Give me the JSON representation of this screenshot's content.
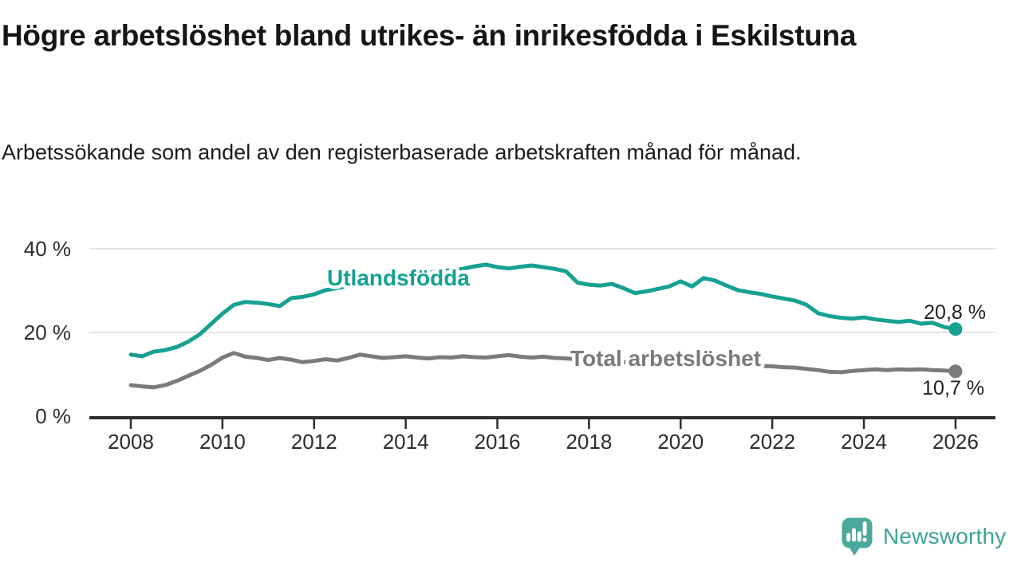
{
  "title": "Högre arbetslöshet bland utrikes- än inrikesfödda i Eskilstuna",
  "subtitle": "Arbetssökande som andel av den registerbaserade arbetskraften månad för månad.",
  "branding": {
    "logo_text": "Newsworthy",
    "logo_icon": "newsworthy-speech-bubble-bar-chart-icon",
    "logo_color": "#4aa89c"
  },
  "colors": {
    "foreign_born_series": "#16a192",
    "total_series": "#7b7b7b",
    "axis": "#2e2e2e",
    "gridline": "#dcdcdc",
    "title_text": "#161616",
    "background": "#ffffff"
  },
  "chart_data": {
    "type": "line",
    "title": "Högre arbetslöshet bland utrikes- än inrikesfödda i Eskilstuna",
    "subtitle": "Arbetssökande som andel av den registerbaserade arbetskraften månad för månad.",
    "xlabel": "",
    "ylabel": "",
    "x_start": 2008,
    "x_step": 0.25,
    "x_end": 2026,
    "ylim": [
      0,
      44
    ],
    "grid": "horizontal",
    "legend_position": "inline-labels",
    "x_tick_values": [
      2008,
      2010,
      2012,
      2014,
      2016,
      2018,
      2020,
      2022,
      2024,
      2026
    ],
    "x_tick_labels": [
      "2008",
      "2010",
      "2012",
      "2014",
      "2016",
      "2018",
      "2020",
      "2022",
      "2024",
      "2026"
    ],
    "y_ticks": [
      {
        "value": 0,
        "label": "0 %"
      },
      {
        "value": 20,
        "label": "20 %"
      },
      {
        "value": 40,
        "label": "40 %"
      }
    ],
    "series": [
      {
        "name": "Utlandsfödda",
        "color": "#16a192",
        "end_value": 20.8,
        "end_label": "20,8 %",
        "values": [
          14.7,
          14.3,
          15.4,
          15.8,
          16.5,
          17.8,
          19.5,
          22.0,
          24.5,
          26.6,
          27.3,
          27.1,
          26.8,
          26.3,
          28.2,
          28.5,
          29.1,
          30.1,
          30.6,
          31.1,
          31.7,
          32.2,
          32.7,
          33.1,
          33.5,
          33.9,
          34.3,
          34.6,
          34.9,
          35.2,
          35.8,
          36.2,
          35.6,
          35.3,
          35.7,
          36.0,
          35.6,
          35.2,
          34.6,
          31.9,
          31.4,
          31.2,
          31.6,
          30.6,
          29.4,
          29.8,
          30.4,
          31.0,
          32.2,
          31.0,
          33.0,
          32.4,
          31.2,
          30.1,
          29.6,
          29.2,
          28.6,
          28.1,
          27.6,
          26.6,
          24.6,
          23.9,
          23.5,
          23.3,
          23.6,
          23.1,
          22.8,
          22.5,
          22.8,
          22.1,
          22.3,
          21.3,
          20.8
        ]
      },
      {
        "name": "Total arbetslöshet",
        "color": "#7b7b7b",
        "end_value": 10.7,
        "end_label": "10,7 %",
        "values": [
          7.4,
          7.1,
          6.9,
          7.4,
          8.4,
          9.6,
          10.8,
          12.2,
          14.0,
          15.1,
          14.2,
          13.9,
          13.4,
          13.9,
          13.5,
          12.9,
          13.2,
          13.6,
          13.3,
          13.9,
          14.7,
          14.3,
          13.9,
          14.1,
          14.3,
          14.0,
          13.8,
          14.1,
          14.0,
          14.3,
          14.1,
          14.0,
          14.3,
          14.6,
          14.2,
          14.0,
          14.2,
          13.9,
          13.8,
          13.6,
          13.4,
          13.2,
          13.0,
          12.9,
          12.7,
          12.6,
          12.5,
          12.5,
          12.6,
          12.8,
          12.9,
          12.8,
          12.6,
          12.4,
          12.2,
          12.0,
          11.9,
          11.7,
          11.6,
          11.3,
          11.0,
          10.6,
          10.5,
          10.8,
          11.0,
          11.2,
          11.0,
          11.2,
          11.1,
          11.2,
          11.0,
          10.9,
          10.7
        ]
      }
    ]
  }
}
